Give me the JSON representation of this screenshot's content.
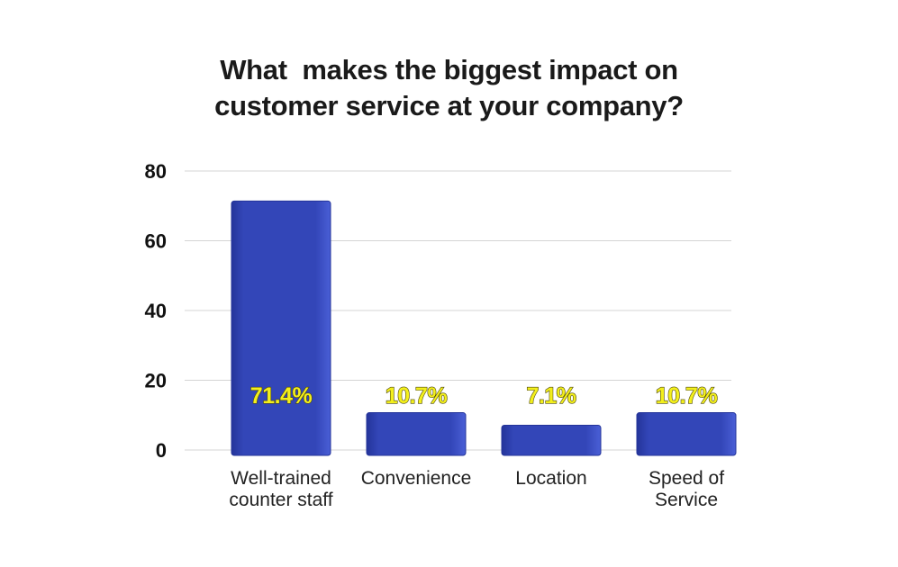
{
  "chart_data": {
    "type": "bar",
    "title_lines": [
      "What  makes the biggest impact on",
      "customer service at your company?"
    ],
    "categories": [
      [
        "Well-trained",
        "counter staff"
      ],
      [
        "Convenience"
      ],
      [
        "Location"
      ],
      [
        "Speed of",
        "Service"
      ]
    ],
    "values": [
      71.4,
      10.7,
      7.1,
      10.7
    ],
    "data_labels": [
      "71.4%",
      "10.7%",
      "7.1%",
      "10.7%"
    ],
    "yticks": [
      "0",
      "20",
      "40",
      "60",
      "80"
    ],
    "ylim": [
      0,
      80
    ],
    "grid": true,
    "legend": "none",
    "colors": {
      "bar": "#3346b8",
      "bar_dark": "#24349a",
      "bar_light": "#4a5fd6",
      "gridline": "#d4d4d4",
      "data_label": "#f3ef1c"
    }
  }
}
